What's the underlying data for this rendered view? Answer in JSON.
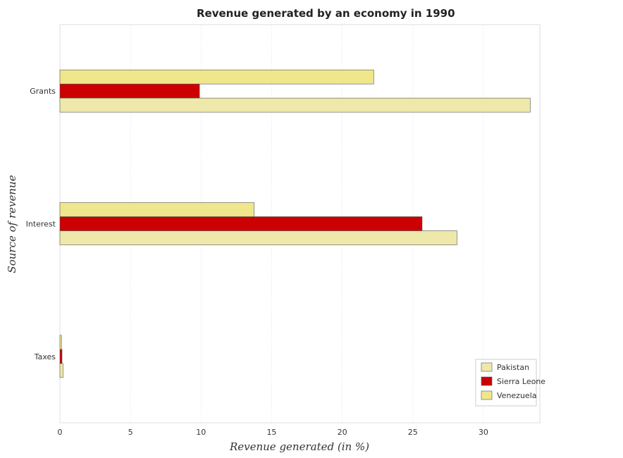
{
  "chart_data": {
    "type": "bar",
    "orientation": "horizontal",
    "title": "Revenue generated by an economy in 1990",
    "xlabel": "Revenue generated (in %)",
    "ylabel": "Source of revenue",
    "categories": [
      "Grants",
      "Interest",
      "Taxes"
    ],
    "series": [
      {
        "name": "Pakistan",
        "color": "#eee8aa",
        "values": [
          33.32,
          28.13,
          0.22
        ]
      },
      {
        "name": "Sierra Leone",
        "color": "#cc0000",
        "values": [
          9.89,
          25.66,
          0.15
        ]
      },
      {
        "name": "Venezuela",
        "color": "#f0e68c",
        "values": [
          22.23,
          13.76,
          0.11
        ]
      }
    ],
    "xlim": [
      0,
      34
    ],
    "xticks": [
      0,
      5,
      10,
      15,
      20,
      25,
      30
    ],
    "grid": true,
    "legend_position": "bottom-right"
  }
}
